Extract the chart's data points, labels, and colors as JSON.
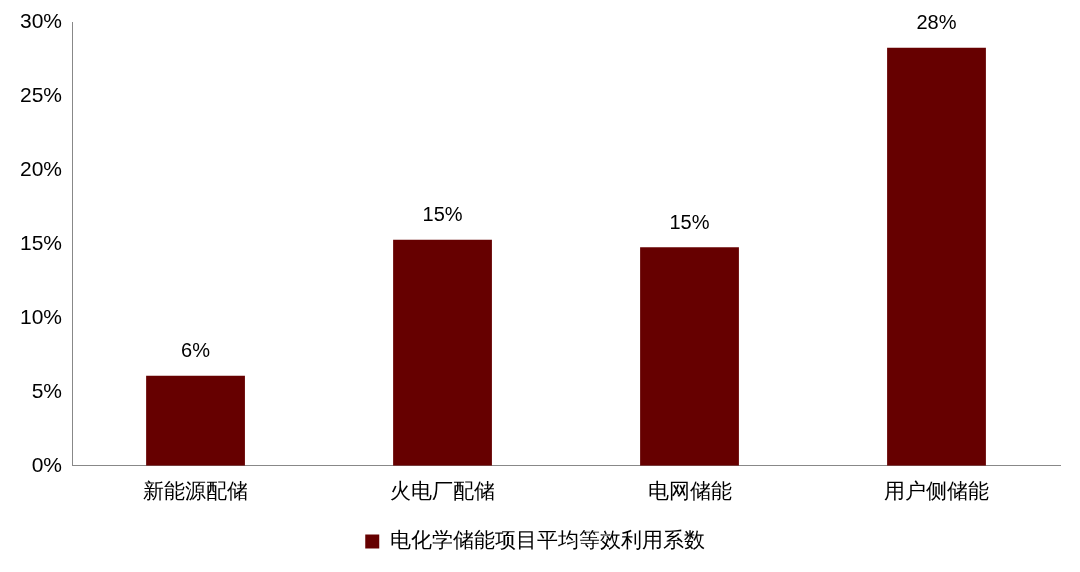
{
  "chart_data": {
    "type": "bar",
    "categories": [
      "新能源配储",
      "火电厂配储",
      "电网储能",
      "用户侧储能"
    ],
    "series": [
      {
        "name": "电化学储能项目平均等效利用系数",
        "color": "#660000",
        "values": [
          6.1,
          15.3,
          14.8,
          28.3
        ],
        "value_labels": [
          "6%",
          "15%",
          "15%",
          "28%"
        ]
      }
    ],
    "ylim": [
      0,
      30
    ],
    "yticks": [
      {
        "value": 0,
        "label": "0%"
      },
      {
        "value": 5,
        "label": "5%"
      },
      {
        "value": 10,
        "label": "10%"
      },
      {
        "value": 15,
        "label": "15%"
      },
      {
        "value": 20,
        "label": "20%"
      },
      {
        "value": 25,
        "label": "25%"
      },
      {
        "value": 30,
        "label": "30%"
      }
    ],
    "grid": false,
    "legend": "bottom"
  }
}
